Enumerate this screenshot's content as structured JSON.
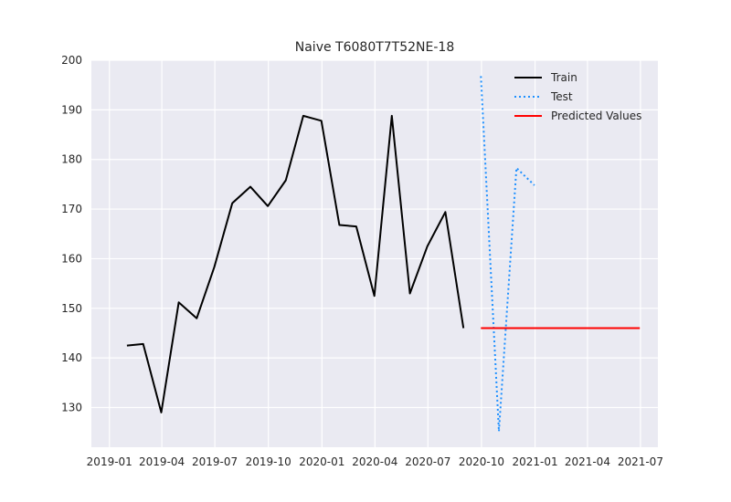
{
  "chart_data": {
    "type": "line",
    "title": "Naive T6080T7T52NE-18",
    "xlabel": "",
    "ylabel": "",
    "xlim": [
      "2018-12-01",
      "2021-07-31"
    ],
    "ylim": [
      122,
      200
    ],
    "x_ticks": [
      "2019-01",
      "2019-04",
      "2019-07",
      "2019-10",
      "2020-01",
      "2020-04",
      "2020-07",
      "2020-10",
      "2021-01",
      "2021-04",
      "2021-07"
    ],
    "y_ticks": [
      130,
      140,
      150,
      160,
      170,
      180,
      190,
      200
    ],
    "grid": true,
    "legend_position": "top-right",
    "series": [
      {
        "name": "Train",
        "color": "#000000",
        "style": "solid",
        "x": [
          "2019-01-31",
          "2019-02-28",
          "2019-03-31",
          "2019-04-30",
          "2019-05-31",
          "2019-06-30",
          "2019-07-31",
          "2019-08-31",
          "2019-09-30",
          "2019-10-31",
          "2019-11-30",
          "2019-12-31",
          "2020-01-31",
          "2020-02-29",
          "2020-03-31",
          "2020-04-30",
          "2020-05-31",
          "2020-06-30",
          "2020-07-31",
          "2020-08-31"
        ],
        "values": [
          142.5,
          142.8,
          129.0,
          151.2,
          148.0,
          158.3,
          171.2,
          174.5,
          170.6,
          175.8,
          188.8,
          187.8,
          166.8,
          166.5,
          152.5,
          188.8,
          153.0,
          162.5,
          169.4,
          146.0
        ]
      },
      {
        "name": "Test",
        "color": "#1e90ff",
        "style": "dotted",
        "x": [
          "2020-09-30",
          "2020-10-31",
          "2020-11-30",
          "2020-12-31"
        ],
        "values": [
          196.8,
          125.2,
          178.3,
          174.8
        ]
      },
      {
        "name": "Predicted Values",
        "color": "#ff0000",
        "style": "solid",
        "x": [
          "2020-09-30",
          "2021-06-30"
        ],
        "values": [
          146.0,
          146.0
        ]
      }
    ]
  }
}
